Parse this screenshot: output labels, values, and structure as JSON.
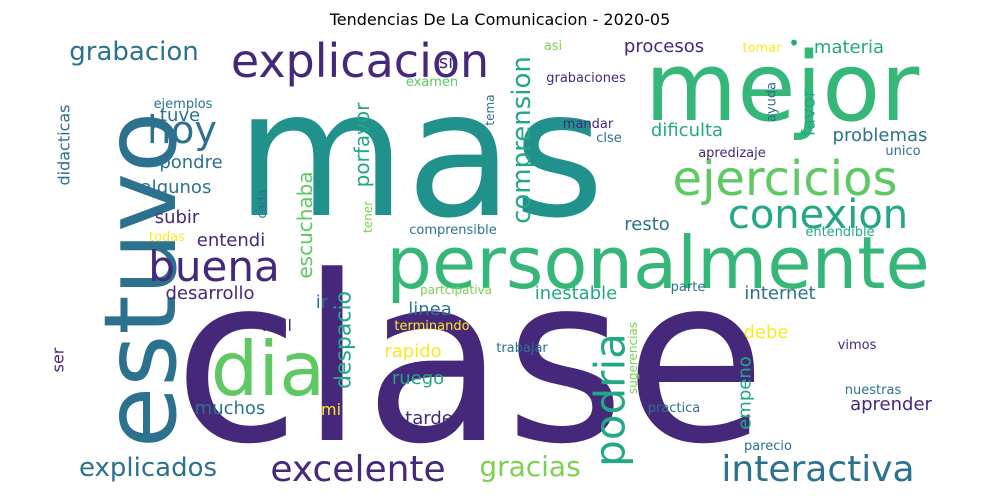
{
  "chart_data": {
    "type": "wordcloud",
    "title": "Tendencias De La Comunicacion - 2020-05",
    "colormap": "viridis",
    "words": [
      {
        "text": "clase",
        "color": "#46287a"
      },
      {
        "text": "mas",
        "color": "#21918c"
      },
      {
        "text": "mejor",
        "color": "#35b779"
      },
      {
        "text": "estuvo",
        "color": "#2c728e"
      },
      {
        "text": "personalmente",
        "color": "#35b779"
      },
      {
        "text": "dia",
        "color": "#5ec962"
      },
      {
        "text": "explicacion",
        "color": "#46287a"
      },
      {
        "text": "ejercicios",
        "color": "#5ec962"
      },
      {
        "text": "conexion",
        "color": "#22a884"
      },
      {
        "text": "buena",
        "color": "#46287a"
      },
      {
        "text": "hoy",
        "color": "#2c728e"
      },
      {
        "text": "podria",
        "color": "#22a884"
      },
      {
        "text": "excelente",
        "color": "#46287a"
      },
      {
        "text": "interactiva",
        "color": "#2c728e"
      },
      {
        "text": "comprension",
        "color": "#22a884"
      },
      {
        "text": "gracias",
        "color": "#7ad151"
      },
      {
        "text": "grabacion",
        "color": "#2c728e"
      },
      {
        "text": "explicados",
        "color": "#2c728e"
      },
      {
        "text": "despacio",
        "color": "#22a884"
      },
      {
        "text": "escuchaba",
        "color": "#5ec962"
      },
      {
        "text": "porfavor",
        "color": "#22a884"
      },
      {
        "text": "procesos",
        "color": "#46287a"
      },
      {
        "text": "materia",
        "color": "#22a884"
      },
      {
        "text": "favor",
        "color": "#22a884"
      },
      {
        "text": "dificulta",
        "color": "#22a884"
      },
      {
        "text": "problemas",
        "color": "#2c728e"
      },
      {
        "text": "tuve",
        "color": "#2c728e"
      },
      {
        "text": "pondre",
        "color": "#2c728e"
      },
      {
        "text": "algunos",
        "color": "#2c728e"
      },
      {
        "text": "subir",
        "color": "#46287a"
      },
      {
        "text": "entendi",
        "color": "#46287a"
      },
      {
        "text": "desarrollo",
        "color": "#46287a"
      },
      {
        "text": "didacticas",
        "color": "#2c728e"
      },
      {
        "text": "resto",
        "color": "#2c728e"
      },
      {
        "text": "inestable",
        "color": "#22a884"
      },
      {
        "text": "internet",
        "color": "#2c728e"
      },
      {
        "text": "linea",
        "color": "#2c728e"
      },
      {
        "text": "rapido",
        "color": "#fde725"
      },
      {
        "text": "ruego",
        "color": "#22a884"
      },
      {
        "text": "tarde",
        "color": "#46287a"
      },
      {
        "text": "debe",
        "color": "#fde725"
      },
      {
        "text": "empeno",
        "color": "#22a884"
      },
      {
        "text": "aprender",
        "color": "#46287a"
      },
      {
        "text": "muchos",
        "color": "#2c728e"
      },
      {
        "text": "mal",
        "color": "#46287a"
      },
      {
        "text": "ser",
        "color": "#46287a"
      },
      {
        "text": "ir",
        "color": "#2c728e"
      },
      {
        "text": "si",
        "color": "#46287a"
      },
      {
        "text": "mi",
        "color": "#fde725"
      },
      {
        "text": "grabaciones",
        "color": "#46287a"
      },
      {
        "text": "asi",
        "color": "#7ad151"
      },
      {
        "text": "tomar",
        "color": "#fde725"
      },
      {
        "text": "examen",
        "color": "#5ec962"
      },
      {
        "text": "ejemplos",
        "color": "#2c728e"
      },
      {
        "text": "tema",
        "color": "#2c728e"
      },
      {
        "text": "mandar",
        "color": "#46287a"
      },
      {
        "text": "clse",
        "color": "#2c728e"
      },
      {
        "text": "ayuda",
        "color": "#2c728e"
      },
      {
        "text": "apredizaje",
        "color": "#46287a"
      },
      {
        "text": "unico",
        "color": "#2c728e"
      },
      {
        "text": "cada",
        "color": "#2c728e"
      },
      {
        "text": "todas",
        "color": "#fde725"
      },
      {
        "text": "tener",
        "color": "#7ad151"
      },
      {
        "text": "comprensible",
        "color": "#2c728e"
      },
      {
        "text": "entendible",
        "color": "#22a884"
      },
      {
        "text": "partcipativa",
        "color": "#7ad151"
      },
      {
        "text": "parte",
        "color": "#2c728e"
      },
      {
        "text": "terminando",
        "color": "#fde725"
      },
      {
        "text": "trabajar",
        "color": "#2c728e"
      },
      {
        "text": "sugerencias",
        "color": "#7ad151"
      },
      {
        "text": "vimos",
        "color": "#46287a"
      },
      {
        "text": "nuestras",
        "color": "#2c728e"
      },
      {
        "text": "practica",
        "color": "#2c728e"
      },
      {
        "text": "parecio",
        "color": "#2c728e"
      },
      {
        "text": "•",
        "color": "#22a884"
      }
    ]
  }
}
